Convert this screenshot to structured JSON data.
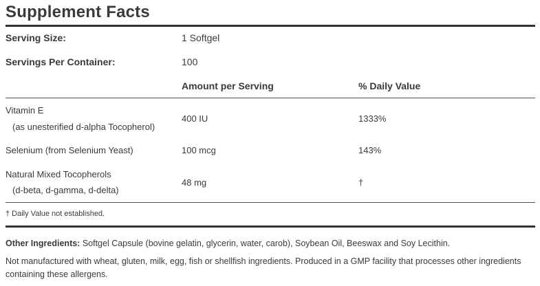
{
  "title": "Supplement Facts",
  "serving_size": {
    "label": "Serving Size:",
    "value": "1 Softgel"
  },
  "servings_per_container": {
    "label": "Servings Per Container:",
    "value": "100"
  },
  "headers": {
    "amount": "Amount per Serving",
    "dv": "% Daily Value"
  },
  "nutrients": [
    {
      "name": "Vitamin E",
      "sub": "(as unesterified d-alpha Tocopherol)",
      "amount": "400 IU",
      "dv": "1333%"
    },
    {
      "name": "Selenium (from Selenium Yeast)",
      "sub": "",
      "amount": "100 mcg",
      "dv": "143%"
    },
    {
      "name": "Natural Mixed Tocopherols",
      "sub": "(d-beta, d-gamma, d-delta)",
      "amount": "48 mg",
      "dv": "†"
    }
  ],
  "footnote": "† Daily Value not established.",
  "other_ingredients": {
    "label": "Other Ingredients:",
    "text": " Softgel Capsule (bovine gelatin, glycerin, water, carob), Soybean Oil, Beeswax and Soy Lecithin."
  },
  "allergen_statement": "Not manufactured with wheat, gluten, milk, egg, fish or shellfish ingredients. Produced in a GMP facility that processes other ingredients containing these allergens."
}
